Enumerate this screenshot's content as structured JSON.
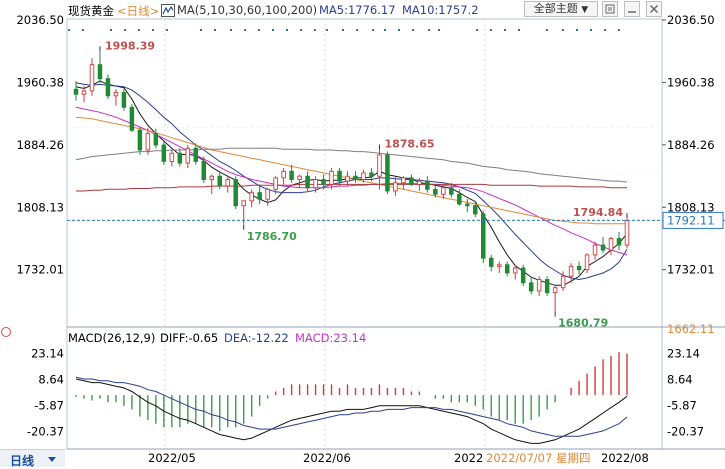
{
  "toolbar": {
    "instrument": "现货黄金",
    "period": "<日线>",
    "ma_label": "MA(5,10,30,60,100,200)",
    "ma5": "MA5:1776.17",
    "ma10": "MA10:1757.2",
    "theme_button": "全部主题",
    "colors": {
      "instrument": "#000000",
      "period": "#e08a3a",
      "ma": "#333333",
      "ma5": "#2b3f8e",
      "ma10": "#2b3f8e"
    }
  },
  "price_axis": {
    "ticks": [
      "2036.50",
      "1960.38",
      "1884.26",
      "1808.13",
      "1732.01"
    ],
    "current_price": "1792.11",
    "low_label": "1662.11"
  },
  "macd_header": {
    "title": "MACD(26,12,9)",
    "diff": "DIFF:-0.65",
    "dea": "DEA:-12.22",
    "macd": "MACD:23.14"
  },
  "macd_axis": {
    "ticks": [
      "23.14",
      "8.64",
      "-5.87",
      "-20.37"
    ]
  },
  "bottom_bar": {
    "period_tab": "日线",
    "date_labels": [
      "2022/05",
      "2022/06",
      "2022",
      "2022/08"
    ],
    "cursor_date": "2022/07/07 星期四"
  },
  "chart_data": {
    "type": "candlestick",
    "instrument": "现货黄金",
    "period": "日线",
    "y_range": [
      1662.11,
      2036.5
    ],
    "annotations": [
      {
        "label": "1998.39",
        "value": 1998.39,
        "type": "high"
      },
      {
        "label": "1786.70",
        "value": 1786.7,
        "type": "low"
      },
      {
        "label": "1878.65",
        "value": 1878.65,
        "type": "high"
      },
      {
        "label": "1680.79",
        "value": 1680.79,
        "type": "low"
      },
      {
        "label": "1794.84",
        "value": 1794.84,
        "type": "high"
      }
    ],
    "ohlc": [
      [
        1952,
        1962,
        1938,
        1946
      ],
      [
        1946,
        1956,
        1936,
        1950
      ],
      [
        1950,
        1990,
        1944,
        1982
      ],
      [
        1982,
        1998.39,
        1960,
        1965
      ],
      [
        1965,
        1970,
        1940,
        1944
      ],
      [
        1944,
        1952,
        1932,
        1948
      ],
      [
        1948,
        1952,
        1926,
        1930
      ],
      [
        1930,
        1934,
        1900,
        1902
      ],
      [
        1902,
        1906,
        1872,
        1878
      ],
      [
        1878,
        1905,
        1872,
        1898
      ],
      [
        1898,
        1904,
        1880,
        1884
      ],
      [
        1884,
        1888,
        1860,
        1864
      ],
      [
        1864,
        1878,
        1858,
        1874
      ],
      [
        1874,
        1880,
        1858,
        1862
      ],
      [
        1862,
        1884,
        1856,
        1880
      ],
      [
        1880,
        1886,
        1860,
        1864
      ],
      [
        1864,
        1870,
        1838,
        1842
      ],
      [
        1842,
        1848,
        1824,
        1846
      ],
      [
        1846,
        1852,
        1830,
        1834
      ],
      [
        1834,
        1846,
        1826,
        1842
      ],
      [
        1842,
        1846,
        1806,
        1810
      ],
      [
        1810,
        1814,
        1786.7,
        1816
      ],
      [
        1816,
        1830,
        1808,
        1826
      ],
      [
        1826,
        1836,
        1812,
        1818
      ],
      [
        1818,
        1832,
        1810,
        1830
      ],
      [
        1830,
        1846,
        1824,
        1844
      ],
      [
        1844,
        1856,
        1836,
        1852
      ],
      [
        1852,
        1860,
        1838,
        1842
      ],
      [
        1842,
        1848,
        1832,
        1846
      ],
      [
        1846,
        1852,
        1828,
        1832
      ],
      [
        1832,
        1846,
        1826,
        1842
      ],
      [
        1842,
        1848,
        1830,
        1836
      ],
      [
        1836,
        1856,
        1830,
        1852
      ],
      [
        1852,
        1856,
        1834,
        1840
      ],
      [
        1840,
        1852,
        1834,
        1846
      ],
      [
        1846,
        1852,
        1838,
        1842
      ],
      [
        1842,
        1854,
        1838,
        1850
      ],
      [
        1850,
        1856,
        1840,
        1846
      ],
      [
        1846,
        1878.65,
        1830,
        1872
      ],
      [
        1872,
        1876,
        1824,
        1828
      ],
      [
        1828,
        1846,
        1822,
        1838
      ],
      [
        1838,
        1846,
        1830,
        1844
      ],
      [
        1844,
        1848,
        1834,
        1836
      ],
      [
        1836,
        1844,
        1828,
        1840
      ],
      [
        1840,
        1846,
        1826,
        1830
      ],
      [
        1830,
        1836,
        1820,
        1824
      ],
      [
        1824,
        1834,
        1818,
        1832
      ],
      [
        1832,
        1838,
        1820,
        1824
      ],
      [
        1824,
        1830,
        1810,
        1812
      ],
      [
        1812,
        1818,
        1802,
        1810
      ],
      [
        1810,
        1814,
        1796,
        1800
      ],
      [
        1800,
        1804,
        1740,
        1746
      ],
      [
        1746,
        1750,
        1730,
        1736
      ],
      [
        1736,
        1742,
        1728,
        1738
      ],
      [
        1738,
        1742,
        1724,
        1728
      ],
      [
        1728,
        1738,
        1720,
        1734
      ],
      [
        1734,
        1738,
        1712,
        1716
      ],
      [
        1716,
        1722,
        1702,
        1706
      ],
      [
        1706,
        1724,
        1700,
        1720
      ],
      [
        1720,
        1724,
        1700,
        1704
      ],
      [
        1704,
        1712,
        1680.79,
        1710
      ],
      [
        1710,
        1730,
        1706,
        1724
      ],
      [
        1724,
        1740,
        1716,
        1736
      ],
      [
        1736,
        1742,
        1726,
        1732
      ],
      [
        1732,
        1752,
        1728,
        1750
      ],
      [
        1750,
        1766,
        1744,
        1762
      ],
      [
        1762,
        1772,
        1752,
        1756
      ],
      [
        1756,
        1772,
        1750,
        1770
      ],
      [
        1770,
        1778,
        1756,
        1762
      ],
      [
        1762,
        1794.84,
        1758,
        1792
      ]
    ],
    "ma": [
      {
        "name": "MA5",
        "color": "#1a1a1a",
        "values": [
          1955,
          1953,
          1957,
          1962,
          1958,
          1956,
          1954,
          1940,
          1922,
          1908,
          1898,
          1889,
          1880,
          1872,
          1873,
          1871,
          1865,
          1857,
          1851,
          1846,
          1841,
          1830,
          1823,
          1818,
          1814,
          1817,
          1828,
          1835,
          1838,
          1841,
          1842,
          1840,
          1841,
          1841,
          1843,
          1844,
          1844,
          1845,
          1852,
          1848,
          1846,
          1844,
          1843,
          1838,
          1837,
          1835,
          1833,
          1831,
          1826,
          1820,
          1815,
          1799,
          1784,
          1766,
          1750,
          1737,
          1730,
          1723,
          1719,
          1716,
          1713,
          1713,
          1718,
          1724,
          1736,
          1742,
          1748,
          1756,
          1764,
          1776
        ]
      },
      {
        "name": "MA10",
        "color": "#2b3f8e",
        "values": [
          1960,
          1958,
          1957,
          1958,
          1957,
          1956,
          1955,
          1951,
          1944,
          1936,
          1927,
          1918,
          1910,
          1900,
          1892,
          1884,
          1878,
          1871,
          1864,
          1859,
          1853,
          1846,
          1840,
          1834,
          1830,
          1827,
          1826,
          1826,
          1826,
          1827,
          1829,
          1833,
          1836,
          1838,
          1840,
          1842,
          1842,
          1842,
          1844,
          1844,
          1843,
          1842,
          1842,
          1841,
          1840,
          1839,
          1838,
          1836,
          1833,
          1829,
          1825,
          1816,
          1807,
          1797,
          1786,
          1775,
          1765,
          1755,
          1745,
          1737,
          1731,
          1725,
          1722,
          1720,
          1722,
          1725,
          1728,
          1733,
          1741,
          1757
        ]
      },
      {
        "name": "MA30",
        "color": "#c832c8",
        "values": [
          1930,
          1928,
          1926,
          1924,
          1921,
          1918,
          1914,
          1910,
          1906,
          1902,
          1897,
          1892,
          1887,
          1882,
          1877,
          1872,
          1867,
          1862,
          1857,
          1852,
          1848,
          1845,
          1842,
          1840,
          1838,
          1836,
          1834,
          1833,
          1832,
          1832,
          1832,
          1832,
          1833,
          1834,
          1834,
          1835,
          1835,
          1836,
          1836,
          1837,
          1837,
          1837,
          1837,
          1837,
          1836,
          1836,
          1835,
          1834,
          1833,
          1832,
          1830,
          1827,
          1823,
          1819,
          1815,
          1811,
          1806,
          1801,
          1796,
          1791,
          1786,
          1782,
          1777,
          1773,
          1769,
          1764,
          1760,
          1756,
          1753,
          1750
        ]
      },
      {
        "name": "MA60",
        "color": "#e08a3a",
        "values": [
          1918,
          1917,
          1916,
          1914,
          1912,
          1910,
          1908,
          1906,
          1904,
          1902,
          1899,
          1896,
          1893,
          1890,
          1887,
          1884,
          1881,
          1878,
          1876,
          1874,
          1872,
          1870,
          1868,
          1866,
          1864,
          1862,
          1860,
          1858,
          1856,
          1854,
          1852,
          1850,
          1848,
          1846,
          1844,
          1842,
          1840,
          1838,
          1836,
          1834,
          1832,
          1830,
          1828,
          1826,
          1824,
          1822,
          1820,
          1818,
          1816,
          1814,
          1812,
          1810,
          1808,
          1806,
          1804,
          1802,
          1800,
          1798,
          1796,
          1794,
          1792,
          1791,
          1790,
          1789,
          1789,
          1788,
          1788,
          1788,
          1788,
          1788
        ]
      },
      {
        "name": "MA100",
        "color": "#7f7f7f",
        "values": [
          1866,
          1868,
          1870,
          1871,
          1872,
          1873,
          1874,
          1875,
          1876,
          1876,
          1877,
          1877,
          1878,
          1878,
          1878,
          1878,
          1879,
          1879,
          1879,
          1880,
          1880,
          1880,
          1880,
          1880,
          1880,
          1880,
          1879,
          1879,
          1879,
          1879,
          1878,
          1878,
          1878,
          1877,
          1877,
          1876,
          1876,
          1875,
          1874,
          1873,
          1872,
          1871,
          1870,
          1869,
          1868,
          1867,
          1866,
          1864,
          1863,
          1862,
          1860,
          1858,
          1857,
          1856,
          1854,
          1853,
          1852,
          1851,
          1849,
          1848,
          1847,
          1846,
          1845,
          1844,
          1843,
          1842,
          1841,
          1840,
          1840,
          1839
        ]
      },
      {
        "name": "MA200",
        "color": "#a83a3a",
        "values": [
          1828,
          1828,
          1829,
          1829,
          1830,
          1830,
          1830,
          1831,
          1831,
          1831,
          1832,
          1832,
          1832,
          1833,
          1833,
          1833,
          1833,
          1834,
          1834,
          1834,
          1834,
          1834,
          1835,
          1835,
          1835,
          1835,
          1835,
          1835,
          1836,
          1836,
          1836,
          1836,
          1836,
          1836,
          1836,
          1836,
          1836,
          1836,
          1836,
          1836,
          1836,
          1836,
          1836,
          1836,
          1836,
          1836,
          1836,
          1836,
          1836,
          1836,
          1836,
          1836,
          1835,
          1835,
          1835,
          1835,
          1835,
          1835,
          1834,
          1834,
          1834,
          1834,
          1834,
          1833,
          1833,
          1833,
          1833,
          1832,
          1832,
          1832
        ]
      }
    ],
    "macd": {
      "y_range": [
        -29,
        28
      ],
      "diff": [
        9,
        8,
        7,
        7,
        6,
        5,
        4,
        2,
        -1,
        -4,
        -6,
        -9,
        -11,
        -13,
        -14,
        -16,
        -18,
        -20,
        -22,
        -23,
        -24,
        -25,
        -24,
        -22,
        -20,
        -18,
        -16,
        -14,
        -13,
        -12,
        -11,
        -10,
        -9,
        -9,
        -8,
        -8,
        -8,
        -7,
        -6,
        -6,
        -6,
        -6,
        -6,
        -6,
        -7,
        -8,
        -9,
        -10,
        -11,
        -12,
        -14,
        -16,
        -19,
        -21,
        -23,
        -25,
        -26,
        -27,
        -27,
        -26,
        -25,
        -23,
        -21,
        -19,
        -16,
        -13,
        -10,
        -7,
        -4,
        -0.65
      ],
      "dea": [
        10,
        9,
        9,
        8,
        8,
        7,
        7,
        6,
        5,
        3,
        2,
        0,
        -2,
        -4,
        -6,
        -8,
        -9,
        -11,
        -12,
        -14,
        -15,
        -17,
        -18,
        -19,
        -19,
        -19,
        -18,
        -17,
        -16,
        -15,
        -14,
        -13,
        -12,
        -11,
        -11,
        -10,
        -10,
        -9,
        -9,
        -8,
        -8,
        -8,
        -7,
        -7,
        -7,
        -7,
        -8,
        -8,
        -9,
        -10,
        -11,
        -12,
        -13,
        -14,
        -16,
        -17,
        -18,
        -20,
        -21,
        -22,
        -23,
        -23,
        -23,
        -23,
        -22,
        -21,
        -20,
        -18,
        -16,
        -12.22
      ],
      "hist": [
        -1,
        -2,
        -3,
        -2,
        -4,
        -4,
        -6,
        -8,
        -12,
        -14,
        -16,
        -18,
        -18,
        -18,
        -16,
        -16,
        -18,
        -18,
        -20,
        -18,
        -18,
        -16,
        -12,
        -6,
        -2,
        2,
        4,
        6,
        6,
        6,
        6,
        6,
        6,
        4,
        6,
        4,
        4,
        4,
        6,
        4,
        4,
        4,
        2,
        2,
        0,
        -2,
        -2,
        -4,
        -4,
        -4,
        -6,
        -8,
        -12,
        -14,
        -14,
        -16,
        -16,
        -14,
        -12,
        -8,
        -4,
        0,
        4,
        8,
        12,
        16,
        20,
        22,
        24,
        23.14
      ]
    }
  }
}
